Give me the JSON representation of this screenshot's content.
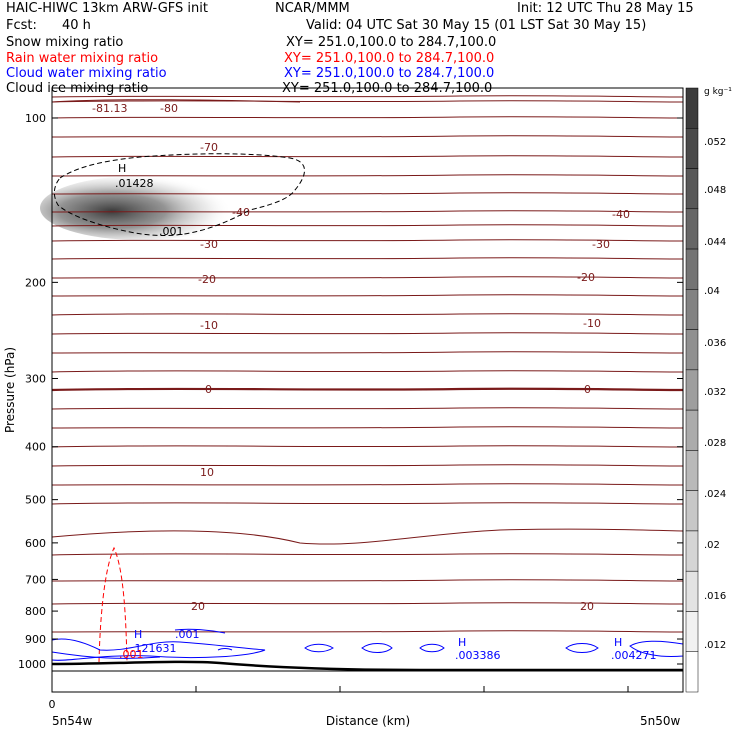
{
  "header": {
    "title_left": "HAIC-HIWC 13km ARW-GFS init",
    "org": "NCAR/MMM",
    "init": "Init: 12 UTC Thu 28 May 15",
    "fcst_label": "Fcst:",
    "fcst_value": "40 h",
    "valid": "Valid: 04 UTC Sat 30 May 15 (01 LST Sat 30 May 15)",
    "fields": [
      {
        "name": "Snow mixing ratio",
        "xy": "XY= 251.0,100.0 to 284.7,100.0",
        "color": "#000000"
      },
      {
        "name": "Rain water mixing ratio",
        "xy": "XY= 251.0,100.0 to 284.7,100.0",
        "color": "#ff0000"
      },
      {
        "name": "Cloud water mixing ratio",
        "xy": "XY= 251.0,100.0 to 284.7,100.0",
        "color": "#0000ff"
      },
      {
        "name": "Cloud ice mixing ratio",
        "xy": "XY= 251.0,100.0 to 284.7,100.0",
        "color": "#000000"
      }
    ]
  },
  "chart_data": {
    "type": "contour",
    "xlabel": "Distance (km)",
    "ylabel": "Pressure (hPa)",
    "x_ticks": [
      "0"
    ],
    "x_endpoints": {
      "left": "5n54w",
      "right": "5n50w"
    },
    "y_ticks": [
      100,
      200,
      300,
      400,
      500,
      600,
      700,
      800,
      900,
      1000
    ],
    "ylim": [
      1050,
      70
    ],
    "y_scale": "log",
    "colorbar": {
      "unit": "g kg⁻¹",
      "ticks": [
        ".052",
        ".048",
        ".044",
        ".04",
        ".036",
        ".032",
        ".028",
        ".024",
        ".02",
        ".016",
        ".012"
      ]
    },
    "temperature_labels": [
      "-81.13",
      "-80",
      "-70",
      "-40",
      "-40",
      "-30",
      "-30",
      "-20",
      "-20",
      "-10",
      "-10",
      "0",
      "0",
      "10",
      "20",
      "20"
    ],
    "markers": [
      {
        "symbol": "H",
        "value": ".01428",
        "color": "#000000"
      },
      {
        "symbol": "",
        "value": ".001",
        "color": "#000000"
      },
      {
        "symbol": "H",
        "value": ".121631",
        "color": "#0000ff"
      },
      {
        "symbol": "",
        "value": ".001",
        "color": "#0000ff"
      },
      {
        "symbol": "",
        "value": ".001",
        "color": "#ff0000"
      },
      {
        "symbol": "H",
        "value": ".003386",
        "color": "#0000ff"
      },
      {
        "symbol": "H",
        "value": ".004271",
        "color": "#0000ff"
      }
    ],
    "colors": {
      "isotherm": "#7a1a1a",
      "rain": "#ff0000",
      "cloud_water": "#0000ff",
      "snow_ice": "#000000"
    }
  }
}
